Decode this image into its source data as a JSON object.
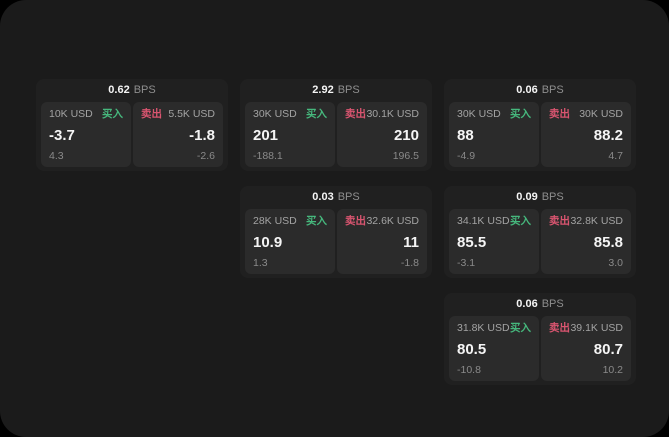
{
  "labels": {
    "buy": "买入",
    "sell": "卖出",
    "unit": "BPS"
  },
  "colors": {
    "buy": "#46b87d",
    "sell": "#da5570",
    "panel": "#1b1b1b",
    "card": "#202020",
    "tile": "#2b2b2b",
    "background": "#000000"
  },
  "cards": [
    {
      "bps": "0.62",
      "buy": {
        "amount": "10K USD",
        "value": "-3.7",
        "sub": "4.3"
      },
      "sell": {
        "amount": "5.5K USD",
        "value": "-1.8",
        "sub": "-2.6"
      }
    },
    {
      "bps": "2.92",
      "buy": {
        "amount": "30K USD",
        "value": "201",
        "sub": "-188.1"
      },
      "sell": {
        "amount": "30.1K USD",
        "value": "210",
        "sub": "196.5"
      }
    },
    {
      "bps": "0.06",
      "buy": {
        "amount": "30K USD",
        "value": "88",
        "sub": "-4.9"
      },
      "sell": {
        "amount": "30K USD",
        "value": "88.2",
        "sub": "4.7"
      }
    },
    {
      "bps": "0.03",
      "buy": {
        "amount": "28K USD",
        "value": "10.9",
        "sub": "1.3"
      },
      "sell": {
        "amount": "32.6K USD",
        "value": "11",
        "sub": "-1.8"
      }
    },
    {
      "bps": "0.09",
      "buy": {
        "amount": "34.1K USD",
        "value": "85.5",
        "sub": "-3.1"
      },
      "sell": {
        "amount": "32.8K USD",
        "value": "85.8",
        "sub": "3.0"
      }
    },
    {
      "bps": "0.06",
      "buy": {
        "amount": "31.8K USD",
        "value": "80.5",
        "sub": "-10.8"
      },
      "sell": {
        "amount": "39.1K USD",
        "value": "80.7",
        "sub": "10.2"
      }
    }
  ]
}
